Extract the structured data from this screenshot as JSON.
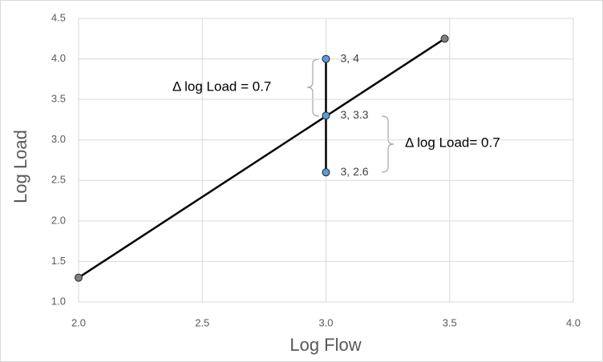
{
  "chart_data": {
    "type": "scatter",
    "x_label": "Log Flow",
    "y_label": "Log Load",
    "xlim": [
      2,
      4
    ],
    "xticks": [
      {
        "value": 2,
        "label": "2.0"
      },
      2.5,
      {
        "value": 3,
        "label": "3.0"
      },
      3.5,
      {
        "value": 4,
        "label": "4.0"
      }
    ],
    "ylim": [
      1,
      4.5
    ],
    "yticks": [
      {
        "value": 1,
        "label": "1.0"
      },
      1.5,
      {
        "value": 2,
        "label": "2.0"
      },
      2.5,
      {
        "value": 3,
        "label": "3.0"
      },
      3.5,
      {
        "value": 4,
        "label": "4.0"
      },
      4.5
    ],
    "grid": true,
    "series": [
      {
        "color": "#808080",
        "x": [
          2,
          3.48
        ],
        "values": [
          1.3,
          4.25
        ]
      },
      {
        "color": "#5b9bd5",
        "x": [
          3,
          3,
          3
        ],
        "values": [
          4,
          3.3,
          2.6
        ],
        "value_labels": [
          "3, 4",
          "3, 3.3",
          "3, 2.6"
        ]
      }
    ],
    "annotations": [
      {
        "text": "Δ log Load = 0.7"
      },
      {
        "text": "Δ log Load= 0.7"
      }
    ]
  }
}
